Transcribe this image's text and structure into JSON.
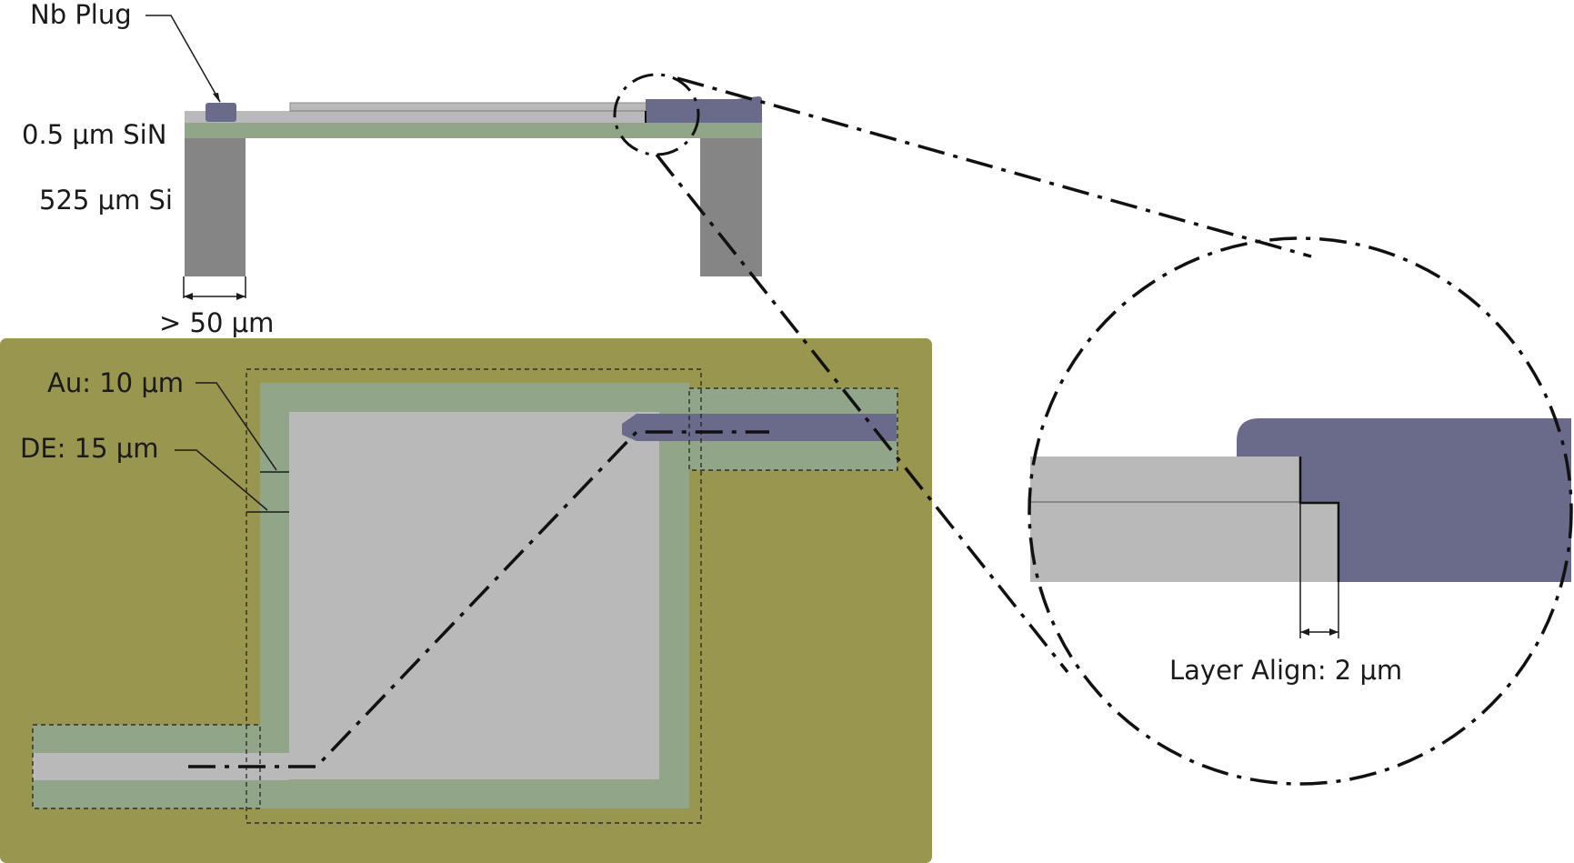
{
  "labels": {
    "nb_plug": "Nb Plug",
    "sin_layer": "0.5 μm SiN",
    "si_layer": "525 μm Si",
    "width_min": "> 50 μm",
    "au_width": "Au: 10 μm",
    "de_width": "DE: 15 μm",
    "layer_align": "Layer Align: 2 μm"
  },
  "colors": {
    "gold_background": "#999650",
    "silicon": "#858585",
    "sin": "#91a588",
    "light_gray_film": "#b9b9b9",
    "nb": "#6a6a8a"
  }
}
